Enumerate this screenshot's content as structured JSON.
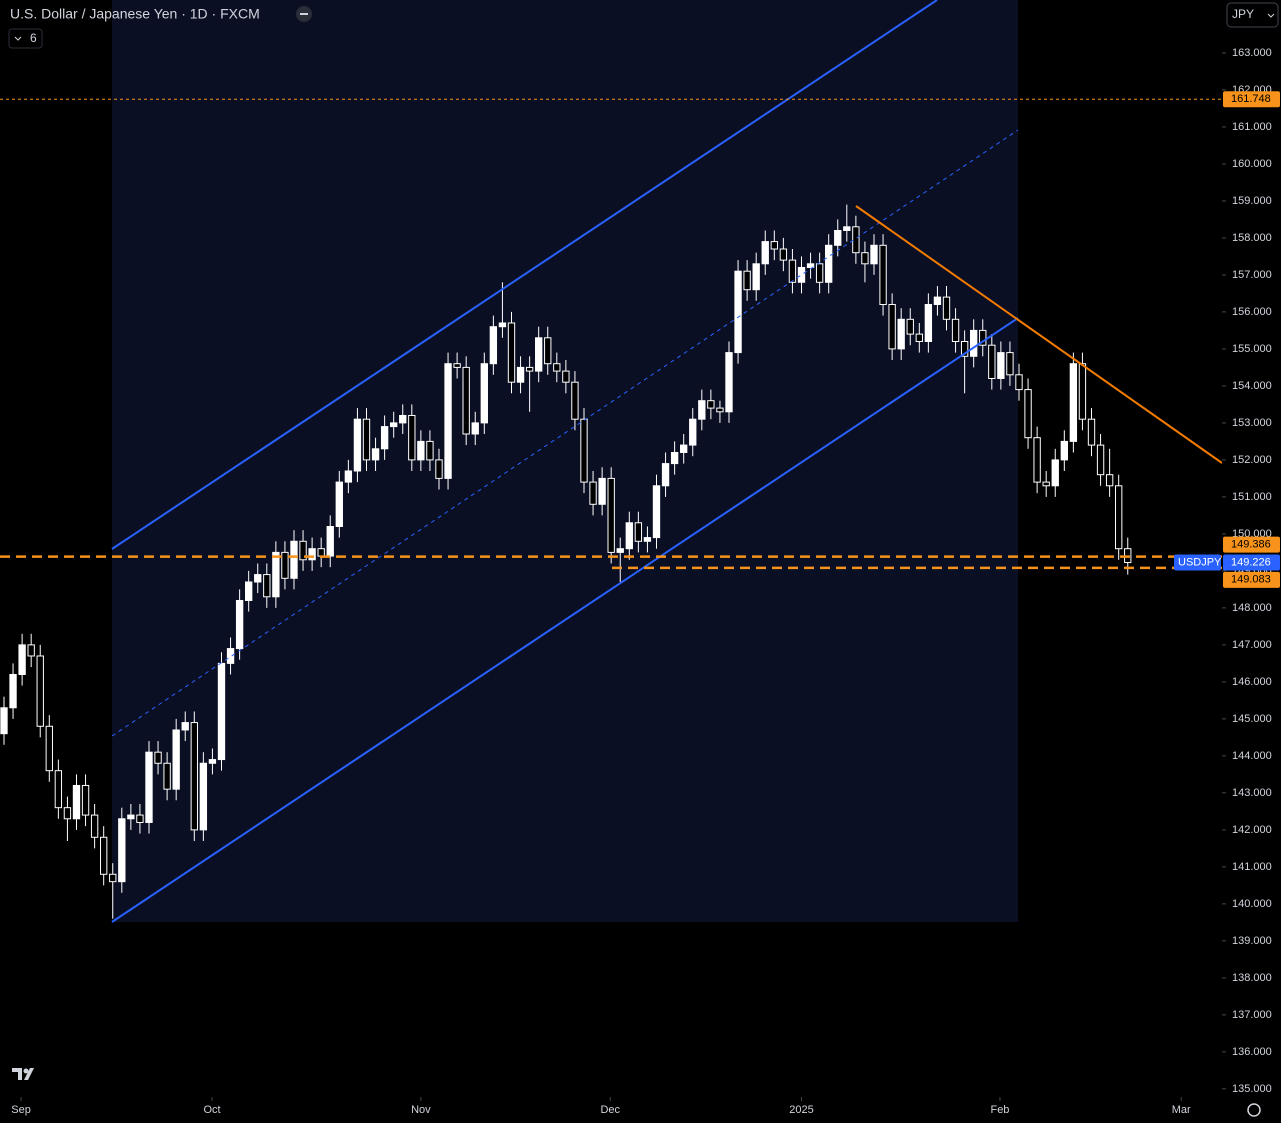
{
  "chart_data": {
    "type": "candlestick",
    "title": "U.S. Dollar / Japanese Yen · 1D · FXCM",
    "indicator_count": "6",
    "currency": "JPY",
    "up_color": "#ffffff",
    "down_color": "#000000",
    "wick_color": "#ffffff",
    "open": [
      144.6,
      145.3,
      146.2,
      147.0,
      146.7,
      144.8,
      143.6,
      142.6,
      142.3,
      143.2,
      142.4,
      141.8,
      140.8,
      140.6,
      142.3,
      142.4,
      142.2,
      144.1,
      143.8,
      143.1,
      144.7,
      144.9,
      142.0,
      143.8,
      143.9,
      146.5,
      146.9,
      148.2,
      148.7,
      148.9,
      148.3,
      149.5,
      148.8,
      149.8,
      149.3,
      149.6,
      149.4,
      150.2,
      151.4,
      151.7,
      153.1,
      152.0,
      152.3,
      152.9,
      153.0,
      153.2,
      152.0,
      152.5,
      152.0,
      151.5,
      154.6,
      154.5,
      152.7,
      153.0,
      154.6,
      155.6,
      155.7,
      154.1,
      154.5,
      154.4,
      155.3,
      154.6,
      154.4,
      154.1,
      153.1,
      151.4,
      150.8,
      151.5,
      149.5,
      149.6,
      150.3,
      149.8,
      149.9,
      151.3,
      151.9,
      152.2,
      152.4,
      153.1,
      153.6,
      153.4,
      153.3,
      154.9,
      157.1,
      156.6,
      157.3,
      157.9,
      157.7,
      157.4,
      156.8,
      157.2,
      157.3,
      156.8,
      157.8,
      158.2,
      158.3,
      157.6,
      157.3,
      157.8,
      156.2,
      155.0,
      155.8,
      155.4,
      155.2,
      156.2,
      156.4,
      155.8,
      155.2,
      154.8,
      155.5,
      155.1,
      154.2,
      154.9,
      154.3,
      153.9,
      152.6,
      151.4,
      151.3,
      152.0,
      152.5,
      154.6,
      153.1,
      152.4,
      151.6,
      151.3,
      149.6
    ],
    "high": [
      145.6,
      146.5,
      147.3,
      147.3,
      147.0,
      145.1,
      143.9,
      142.9,
      143.5,
      143.5,
      142.7,
      142.1,
      141.1,
      142.6,
      142.7,
      142.7,
      144.4,
      144.4,
      144.1,
      145.0,
      145.2,
      145.2,
      144.1,
      144.2,
      146.8,
      147.2,
      148.5,
      149.0,
      149.2,
      149.2,
      149.8,
      149.8,
      150.1,
      150.1,
      149.9,
      149.9,
      150.5,
      151.7,
      152.0,
      153.4,
      153.4,
      152.6,
      153.2,
      153.3,
      153.5,
      153.5,
      152.8,
      152.8,
      152.3,
      154.9,
      154.9,
      154.8,
      153.3,
      154.9,
      155.9,
      156.8,
      156.0,
      154.8,
      154.8,
      155.6,
      155.6,
      154.9,
      154.7,
      154.4,
      153.4,
      151.7,
      151.8,
      151.8,
      149.9,
      150.6,
      150.6,
      150.2,
      151.6,
      152.2,
      152.5,
      152.7,
      153.4,
      153.9,
      153.9,
      153.6,
      155.2,
      157.4,
      157.4,
      157.6,
      158.2,
      158.2,
      158.0,
      157.7,
      157.5,
      157.6,
      157.6,
      158.1,
      158.5,
      158.9,
      158.6,
      157.9,
      158.1,
      158.1,
      156.5,
      156.1,
      156.1,
      155.7,
      156.5,
      156.7,
      156.7,
      156.1,
      155.5,
      155.8,
      155.8,
      155.4,
      155.2,
      155.2,
      154.6,
      154.2,
      152.9,
      151.7,
      152.3,
      152.8,
      154.9,
      154.9,
      153.4,
      152.7,
      152.3,
      151.6,
      149.9
    ],
    "low": [
      144.3,
      145.0,
      145.9,
      146.4,
      144.5,
      143.3,
      142.3,
      141.7,
      142.0,
      142.1,
      141.5,
      140.5,
      139.6,
      140.3,
      142.0,
      141.9,
      141.9,
      143.5,
      142.8,
      142.8,
      144.4,
      141.7,
      141.7,
      143.5,
      143.6,
      146.2,
      146.6,
      147.9,
      148.4,
      148.0,
      148.0,
      148.5,
      148.5,
      149.0,
      149.0,
      149.1,
      149.1,
      149.9,
      151.1,
      151.4,
      151.7,
      151.7,
      152.0,
      152.6,
      152.7,
      151.7,
      151.7,
      151.7,
      151.2,
      151.2,
      154.2,
      152.4,
      152.4,
      152.7,
      154.3,
      155.3,
      153.8,
      153.8,
      153.3,
      154.1,
      154.3,
      154.1,
      153.8,
      152.8,
      151.1,
      150.5,
      150.5,
      149.2,
      148.7,
      149.3,
      149.5,
      149.5,
      149.6,
      151.0,
      151.6,
      151.9,
      152.1,
      152.8,
      153.1,
      153.0,
      153.0,
      154.6,
      156.3,
      156.3,
      157.0,
      157.4,
      157.1,
      156.5,
      156.5,
      156.9,
      156.5,
      156.5,
      157.5,
      157.9,
      157.3,
      156.8,
      157.0,
      155.9,
      154.7,
      154.7,
      155.1,
      154.9,
      154.9,
      155.9,
      155.5,
      154.9,
      153.8,
      154.5,
      154.8,
      153.9,
      153.9,
      154.0,
      153.6,
      152.3,
      151.1,
      151.0,
      151.0,
      151.7,
      152.2,
      152.8,
      152.1,
      151.3,
      151.0,
      149.3,
      148.9
    ],
    "close": [
      145.3,
      146.2,
      147.0,
      146.7,
      144.8,
      143.6,
      142.6,
      142.3,
      143.2,
      142.4,
      141.8,
      140.8,
      140.6,
      142.3,
      142.4,
      142.2,
      144.1,
      143.8,
      143.1,
      144.7,
      144.9,
      142.0,
      143.8,
      143.9,
      146.5,
      146.9,
      148.2,
      148.7,
      148.9,
      148.3,
      149.5,
      148.8,
      149.8,
      149.3,
      149.6,
      149.4,
      150.2,
      151.4,
      151.7,
      153.1,
      152.0,
      152.3,
      152.9,
      153.0,
      153.2,
      152.0,
      152.5,
      152.0,
      151.5,
      154.6,
      154.5,
      152.7,
      153.0,
      154.6,
      155.6,
      155.7,
      154.1,
      154.5,
      154.4,
      155.3,
      154.6,
      154.4,
      154.1,
      153.1,
      151.4,
      150.8,
      151.5,
      149.5,
      149.6,
      150.3,
      149.8,
      149.9,
      151.3,
      151.9,
      152.2,
      152.4,
      153.1,
      153.6,
      153.4,
      153.3,
      154.9,
      157.1,
      156.6,
      157.3,
      157.9,
      157.7,
      157.4,
      156.8,
      157.2,
      157.3,
      156.8,
      157.8,
      158.2,
      158.3,
      157.6,
      157.3,
      157.8,
      156.2,
      155.0,
      155.8,
      155.4,
      155.2,
      156.2,
      156.4,
      155.8,
      155.2,
      154.8,
      155.5,
      155.1,
      154.2,
      154.9,
      154.3,
      153.9,
      152.6,
      151.4,
      151.3,
      152.0,
      152.5,
      154.6,
      153.1,
      152.4,
      151.6,
      151.3,
      149.6,
      149.226
    ],
    "xlim": [
      -0.44,
      134.4
    ],
    "xticks": [
      {
        "value": 1.88,
        "label": "Sep"
      },
      {
        "value": 22.96,
        "label": "Oct"
      },
      {
        "value": 46.0,
        "label": "Nov"
      },
      {
        "value": 66.9,
        "label": "Dec"
      },
      {
        "value": 88.0,
        "label": "2025"
      },
      {
        "value": 109.9,
        "label": "Feb"
      },
      {
        "value": 129.9,
        "label": "Mar"
      }
    ],
    "ylim": [
      134.78,
      164.43
    ],
    "yticks": [
      {
        "value": 135,
        "label": "135.000"
      },
      {
        "value": 136,
        "label": "136.000"
      },
      {
        "value": 137,
        "label": "137.000"
      },
      {
        "value": 138,
        "label": "138.000"
      },
      {
        "value": 139,
        "label": "139.000"
      },
      {
        "value": 140,
        "label": "140.000"
      },
      {
        "value": 141,
        "label": "141.000"
      },
      {
        "value": 142,
        "label": "142.000"
      },
      {
        "value": 143,
        "label": "143.000"
      },
      {
        "value": 144,
        "label": "144.000"
      },
      {
        "value": 145,
        "label": "145.000"
      },
      {
        "value": 146,
        "label": "146.000"
      },
      {
        "value": 147,
        "label": "147.000"
      },
      {
        "value": 148,
        "label": "148.000"
      },
      {
        "value": 149,
        "label": "149.000"
      },
      {
        "value": 150,
        "label": "150.000"
      },
      {
        "value": 151,
        "label": "151.000"
      },
      {
        "value": 152,
        "label": "152.000"
      },
      {
        "value": 153,
        "label": "153.000"
      },
      {
        "value": 154,
        "label": "154.000"
      },
      {
        "value": 155,
        "label": "155.000"
      },
      {
        "value": 156,
        "label": "156.000"
      },
      {
        "value": 157,
        "label": "157.000"
      },
      {
        "value": 158,
        "label": "158.000"
      },
      {
        "value": 159,
        "label": "159.000"
      },
      {
        "value": 160,
        "label": "160.000"
      },
      {
        "value": 161,
        "label": "161.000"
      },
      {
        "value": 162,
        "label": "162.000"
      },
      {
        "value": 163,
        "label": "163.000"
      }
    ],
    "price_lines": [
      {
        "value": 161.748,
        "color": "#f7931a",
        "style": "dotted"
      },
      {
        "value": 149.386,
        "color": "#f7931a",
        "style": "dashed"
      },
      {
        "value": 149.083,
        "color": "#f7931a",
        "style": "dashed"
      }
    ],
    "last_price": {
      "name": "USDJPY",
      "value": 149.226,
      "color": "#2962ff"
    }
  }
}
